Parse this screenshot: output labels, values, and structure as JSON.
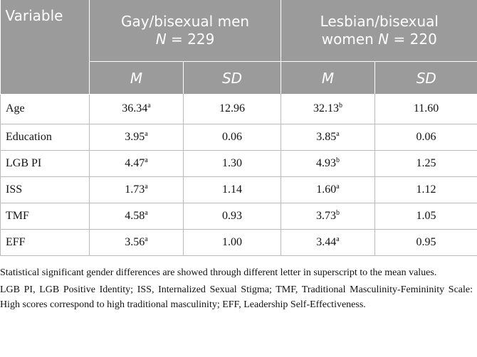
{
  "table": {
    "header": {
      "variable": "Variable",
      "group1": {
        "line1": "Gay/bisexual men",
        "line2_prefix": "N",
        "line2_rest": " = 229"
      },
      "group2": {
        "line1": "Lesbian/bisexual",
        "line2_pre": "women ",
        "line2_prefix": "N",
        "line2_rest": " = 220"
      },
      "m": "M",
      "sd": "SD"
    },
    "rows": [
      {
        "variable": "Age",
        "m1": "36.34",
        "s1": "a",
        "sd1": "12.96",
        "m2": "32.13",
        "s2": "b",
        "sd2": "11.60"
      },
      {
        "variable": "Education",
        "m1": "3.95",
        "s1": "a",
        "sd1": "0.06",
        "m2": "3.85",
        "s2": "a",
        "sd2": "0.06"
      },
      {
        "variable": "LGB PI",
        "m1": "4.47",
        "s1": "a",
        "sd1": "1.30",
        "m2": "4.93",
        "s2": "b",
        "sd2": "1.25"
      },
      {
        "variable": "ISS",
        "m1": "1.73",
        "s1": "a",
        "sd1": "1.14",
        "m2": "1.60",
        "s2": "a",
        "sd2": "1.12"
      },
      {
        "variable": "TMF",
        "m1": "4.58",
        "s1": "a",
        "sd1": "0.93",
        "m2": "3.73",
        "s2": "b",
        "sd2": "1.05"
      },
      {
        "variable": "EFF",
        "m1": "3.56",
        "s1": "a",
        "sd1": "1.00",
        "m2": "3.44",
        "s2": "a",
        "sd2": "0.95"
      }
    ]
  },
  "notes": {
    "significance": "Statistical significant gender differences are showed through different letter in superscript to the mean values.",
    "abbreviations": "LGB PI, LGB Positive Identity; ISS, Internalized Sexual Stigma; TMF, Traditional Masculinity-Femininity Scale: High scores correspond to high traditional masculinity; EFF, Leadership Self-Effectiveness."
  },
  "colors": {
    "header_bg": "#9b9b9b",
    "header_text": "#ffffff",
    "grid": "#b9b9b9"
  }
}
